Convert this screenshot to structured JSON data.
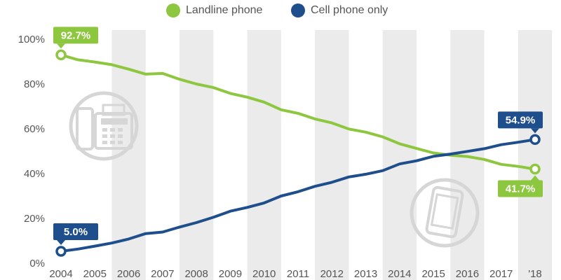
{
  "colors": {
    "landline": "#8dc63f",
    "cell": "#1f4e8c",
    "band": "#ebebeb",
    "axis_text": "#555555",
    "icon": "#d6d6d6"
  },
  "legend": {
    "landline": "Landline phone",
    "cell": "Cell phone only"
  },
  "icons": {
    "left": "fax-phone-icon",
    "right": "mobile-phone-icon"
  },
  "chart_data": {
    "type": "line",
    "x_tick_labels": [
      "2004",
      "2005",
      "2006",
      "2007",
      "2008",
      "2009",
      "2010",
      "2011",
      "2012",
      "2013",
      "2014",
      "2015",
      "2016",
      "2017",
      "'18"
    ],
    "y_ticks": [
      "0%",
      "20%",
      "40%",
      "60%",
      "80%",
      "100%"
    ],
    "ylim": [
      0,
      100
    ],
    "xlim": [
      2004,
      2018
    ],
    "shaded_years": [
      "2006",
      "2008",
      "2010",
      "2012",
      "2014",
      "2016",
      "'18"
    ],
    "grid": false,
    "legend_position": "top-center",
    "series": [
      {
        "name": "Landline phone",
        "x": [
          2004,
          2004.5,
          2005,
          2005.5,
          2006,
          2006.5,
          2007,
          2007.5,
          2008,
          2008.5,
          2009,
          2009.5,
          2010,
          2010.5,
          2011,
          2011.5,
          2012,
          2012.5,
          2013,
          2013.5,
          2014,
          2014.5,
          2015,
          2015.5,
          2016,
          2016.5,
          2017,
          2017.5,
          2018
        ],
        "values": [
          92.7,
          90.5,
          89.5,
          88.3,
          86.3,
          84.1,
          84.4,
          81.8,
          79.7,
          78.1,
          75.5,
          73.8,
          71.6,
          68.2,
          66.6,
          64.1,
          62.3,
          59.6,
          58.2,
          56.1,
          53.0,
          50.9,
          48.9,
          47.9,
          47.3,
          46.0,
          43.8,
          42.9,
          41.7
        ],
        "start_label": "92.7%",
        "end_label": "41.7%"
      },
      {
        "name": "Cell phone only",
        "x": [
          2004,
          2004.5,
          2005,
          2005.5,
          2006,
          2006.5,
          2007,
          2007.5,
          2008,
          2008.5,
          2009,
          2009.5,
          2010,
          2010.5,
          2011,
          2011.5,
          2012,
          2012.5,
          2013,
          2013.5,
          2014,
          2014.5,
          2015,
          2015.5,
          2016,
          2016.5,
          2017,
          2017.5,
          2018
        ],
        "values": [
          5.0,
          6.0,
          7.3,
          8.7,
          10.5,
          12.9,
          13.6,
          15.8,
          17.8,
          20.2,
          22.9,
          24.6,
          26.6,
          29.7,
          31.6,
          34.0,
          35.8,
          38.2,
          39.4,
          41.0,
          44.0,
          45.4,
          47.4,
          48.4,
          49.6,
          50.8,
          52.6,
          53.7,
          54.9
        ],
        "start_label": "5.0%",
        "end_label": "54.9%"
      }
    ]
  }
}
